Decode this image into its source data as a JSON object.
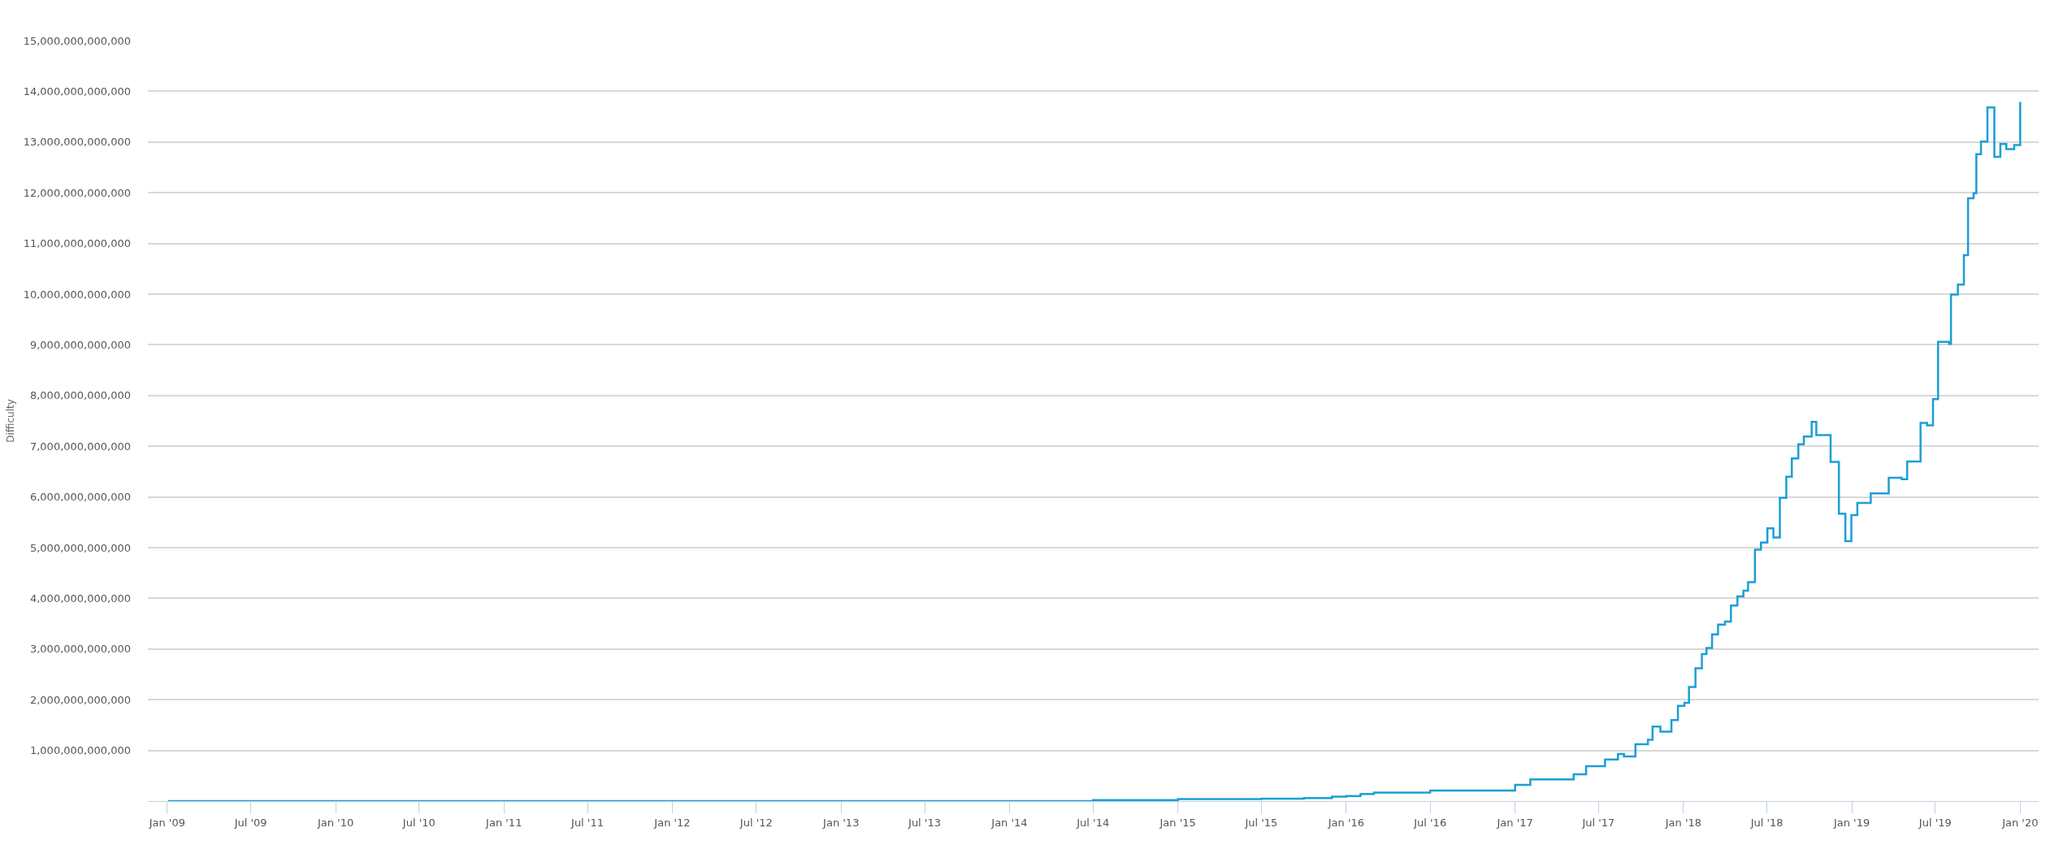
{
  "chart_data": {
    "type": "step",
    "ylabel": "Difficulty",
    "grid": "y",
    "marker": "none",
    "line_style": "solid",
    "xlim": [
      "2008-11-20",
      "2020-02-10"
    ],
    "ylim": [
      0,
      15000000000000
    ],
    "xticks": [
      {
        "value": "2009-01-01",
        "label": "Jan '09"
      },
      {
        "value": "2009-07-01",
        "label": "Jul '09"
      },
      {
        "value": "2010-01-01",
        "label": "Jan '10"
      },
      {
        "value": "2010-07-01",
        "label": "Jul '10"
      },
      {
        "value": "2011-01-01",
        "label": "Jan '11"
      },
      {
        "value": "2011-07-01",
        "label": "Jul '11"
      },
      {
        "value": "2012-01-01",
        "label": "Jan '12"
      },
      {
        "value": "2012-07-01",
        "label": "Jul '12"
      },
      {
        "value": "2013-01-01",
        "label": "Jan '13"
      },
      {
        "value": "2013-07-01",
        "label": "Jul '13"
      },
      {
        "value": "2014-01-01",
        "label": "Jan '14"
      },
      {
        "value": "2014-07-01",
        "label": "Jul '14"
      },
      {
        "value": "2015-01-01",
        "label": "Jan '15"
      },
      {
        "value": "2015-07-01",
        "label": "Jul '15"
      },
      {
        "value": "2016-01-01",
        "label": "Jan '16"
      },
      {
        "value": "2016-07-01",
        "label": "Jul '16"
      },
      {
        "value": "2017-01-01",
        "label": "Jan '17"
      },
      {
        "value": "2017-07-01",
        "label": "Jul '17"
      },
      {
        "value": "2018-01-01",
        "label": "Jan '18"
      },
      {
        "value": "2018-07-01",
        "label": "Jul '18"
      },
      {
        "value": "2019-01-01",
        "label": "Jan '19"
      },
      {
        "value": "2019-07-01",
        "label": "Jul '19"
      },
      {
        "value": "2020-01-01",
        "label": "Jan '20"
      }
    ],
    "yticks": [
      {
        "value": 0,
        "label": null
      },
      {
        "value": 1000000000000,
        "label": "1,000,000,000,000"
      },
      {
        "value": 2000000000000,
        "label": "2,000,000,000,000"
      },
      {
        "value": 3000000000000,
        "label": "3,000,000,000,000"
      },
      {
        "value": 4000000000000,
        "label": "4,000,000,000,000"
      },
      {
        "value": 5000000000000,
        "label": "5,000,000,000,000"
      },
      {
        "value": 6000000000000,
        "label": "6,000,000,000,000"
      },
      {
        "value": 7000000000000,
        "label": "7,000,000,000,000"
      },
      {
        "value": 8000000000000,
        "label": "8,000,000,000,000"
      },
      {
        "value": 9000000000000,
        "label": "9,000,000,000,000"
      },
      {
        "value": 10000000000000,
        "label": "10,000,000,000,000"
      },
      {
        "value": 11000000000000,
        "label": "11,000,000,000,000"
      },
      {
        "value": 12000000000000,
        "label": "12,000,000,000,000"
      },
      {
        "value": 13000000000000,
        "label": "13,000,000,000,000"
      },
      {
        "value": 14000000000000,
        "label": "14,000,000,000,000"
      },
      {
        "value": 15000000000000,
        "label": "15,000,000,000,000"
      }
    ],
    "series": [
      {
        "color": "#1a9fd6",
        "x": [
          "2009-01-03",
          "2013-01-01",
          "2014-01-01",
          "2014-07-01",
          "2015-01-01",
          "2015-07-01",
          "2015-10-01",
          "2015-12-01",
          "2016-01-01",
          "2016-02-01",
          "2016-03-01",
          "2016-07-01",
          "2017-01-01",
          "2017-02-03",
          "2017-05-08",
          "2017-06-04",
          "2017-07-15",
          "2017-08-12",
          "2017-08-25",
          "2017-09-19",
          "2017-10-16",
          "2017-10-26",
          "2017-11-12",
          "2017-12-06",
          "2017-12-20",
          "2018-01-03",
          "2018-01-13",
          "2018-01-27",
          "2018-02-10",
          "2018-02-20",
          "2018-03-04",
          "2018-03-17",
          "2018-04-01",
          "2018-04-14",
          "2018-04-28",
          "2018-05-11",
          "2018-05-21",
          "2018-06-05",
          "2018-06-18",
          "2018-07-02",
          "2018-07-15",
          "2018-07-29",
          "2018-08-12",
          "2018-08-24",
          "2018-09-07",
          "2018-09-19",
          "2018-10-06",
          "2018-10-16",
          "2018-11-16",
          "2018-12-04",
          "2018-12-18",
          "2018-12-31",
          "2019-01-13",
          "2019-02-11",
          "2019-03-22",
          "2019-04-19",
          "2019-05-01",
          "2019-05-30",
          "2019-06-13",
          "2019-06-26",
          "2019-07-07",
          "2019-07-31",
          "2019-08-04",
          "2019-08-19",
          "2019-09-01",
          "2019-09-10",
          "2019-09-22",
          "2019-09-28",
          "2019-10-08",
          "2019-10-22",
          "2019-11-06",
          "2019-11-19",
          "2019-12-02",
          "2019-12-19",
          "2020-01-01"
        ],
        "values": [
          0,
          0,
          0,
          20000000000,
          40000000000,
          50000000000,
          60000000000,
          90000000000,
          100000000000,
          140000000000,
          170000000000,
          210000000000,
          320000000000,
          430000000000,
          530000000000,
          690000000000,
          820000000000,
          930000000000,
          880000000000,
          1120000000000,
          1210000000000,
          1470000000000,
          1370000000000,
          1600000000000,
          1880000000000,
          1940000000000,
          2250000000000,
          2620000000000,
          2900000000000,
          3020000000000,
          3290000000000,
          3480000000000,
          3540000000000,
          3860000000000,
          4040000000000,
          4150000000000,
          4320000000000,
          4960000000000,
          5100000000000,
          5380000000000,
          5200000000000,
          5980000000000,
          6400000000000,
          6760000000000,
          7040000000000,
          7190000000000,
          7480000000000,
          7220000000000,
          6690000000000,
          5670000000000,
          5130000000000,
          5640000000000,
          5880000000000,
          6070000000000,
          6380000000000,
          6350000000000,
          6700000000000,
          7460000000000,
          7410000000000,
          7930000000000,
          9060000000000,
          9020000000000,
          9990000000000,
          10190000000000,
          10770000000000,
          11890000000000,
          11990000000000,
          12760000000000,
          13010000000000,
          13680000000000,
          12710000000000,
          12960000000000,
          12860000000000,
          12940000000000,
          13790000000000
        ]
      }
    ]
  }
}
